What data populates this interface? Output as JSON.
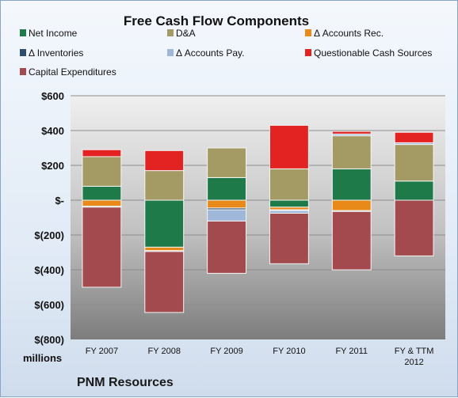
{
  "chart_data": {
    "type": "bar",
    "stacked": true,
    "title": "Free Cash Flow Components",
    "unit_label": "millions",
    "company": "PNM Resources",
    "categories": [
      "FY 2007",
      "FY 2008",
      "FY 2009",
      "FY 2010",
      "FY 2011",
      "FY & TTM 2012"
    ],
    "ylim": [
      -800,
      600
    ],
    "y_ticks": [
      600,
      400,
      200,
      0,
      -200,
      -400,
      -600,
      -800
    ],
    "y_tick_labels": [
      "$600",
      "$400",
      "$200",
      "$-",
      "$(200)",
      "$(400)",
      "$(600)",
      "$(800)"
    ],
    "grid": true,
    "legend_position": "top",
    "series": [
      {
        "name": "Net Income",
        "color": "#1f7a4a",
        "values": [
          80,
          -270,
          130,
          -40,
          180,
          110
        ]
      },
      {
        "name": "D&A",
        "color": "#a39a64",
        "values": [
          170,
          170,
          170,
          180,
          190,
          210
        ]
      },
      {
        "name": "Δ Accounts Rec.",
        "color": "#e88a1a",
        "values": [
          -35,
          -20,
          -45,
          -15,
          -60,
          0
        ]
      },
      {
        "name": "Δ Inventories",
        "color": "#2e4d6e",
        "values": [
          -5,
          -5,
          -10,
          -5,
          -5,
          0
        ]
      },
      {
        "name": "Δ Accounts Pay.",
        "color": "#9fb8da",
        "values": [
          0,
          0,
          -65,
          -15,
          10,
          10
        ]
      },
      {
        "name": "Questionable Cash Sources",
        "color": "#e32222",
        "values": [
          40,
          115,
          0,
          250,
          15,
          60
        ]
      },
      {
        "name": "Capital Expenditures",
        "color": "#a24a4e",
        "values": [
          -460,
          -350,
          -300,
          -290,
          -335,
          -320
        ]
      }
    ]
  }
}
